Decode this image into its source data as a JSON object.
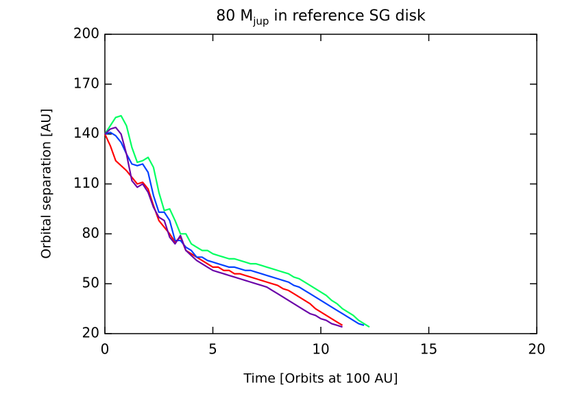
{
  "chart_data": {
    "type": "line",
    "title": {
      "main": "80 M",
      "sub": "jup",
      "rest": " in reference SG disk"
    },
    "x_label": "Time [Orbits at 100 AU]",
    "y_label": "Orbital separation [AU]",
    "xlim": [
      0,
      20
    ],
    "xticks": [
      0,
      5,
      10,
      15,
      20
    ],
    "ylim": [
      20,
      200
    ],
    "yticks": [
      20,
      50,
      80,
      110,
      140,
      170,
      200
    ],
    "grid": false,
    "x": [
      0,
      0.25,
      0.5,
      0.75,
      1,
      1.25,
      1.5,
      1.75,
      2,
      2.25,
      2.5,
      2.75,
      3,
      3.25,
      3.5,
      3.75,
      4,
      4.25,
      4.5,
      4.75,
      5,
      5.25,
      5.5,
      5.75,
      6,
      6.25,
      6.5,
      6.75,
      7,
      7.25,
      7.5,
      7.75,
      8,
      8.25,
      8.5,
      8.75,
      9,
      9.25,
      9.5,
      9.75,
      10,
      10.25,
      10.5,
      10.75,
      11,
      11.25,
      11.5,
      11.75,
      12,
      12.25
    ],
    "series": [
      {
        "color": "#ff0000",
        "values": [
          140,
          133,
          124,
          121,
          118,
          114,
          110,
          111,
          107,
          97,
          88,
          84,
          80,
          75,
          78,
          70,
          68,
          66,
          64,
          62,
          60,
          60,
          58,
          58,
          56,
          56,
          55,
          54,
          53,
          52,
          51,
          50,
          49,
          47,
          46,
          44,
          42,
          40,
          38,
          35,
          33,
          31,
          29,
          27,
          25,
          null,
          null,
          null,
          null,
          null
        ]
      },
      {
        "color": "#0040ff",
        "values": [
          140,
          141,
          139,
          135,
          128,
          122,
          121,
          122,
          117,
          103,
          93,
          93,
          88,
          76,
          76,
          72,
          70,
          66,
          66,
          64,
          63,
          62,
          61,
          60,
          60,
          59,
          58,
          58,
          57,
          56,
          55,
          54,
          53,
          52,
          51,
          49,
          48,
          46,
          44,
          42,
          40,
          38,
          36,
          34,
          32,
          30,
          28,
          26,
          25,
          null
        ]
      },
      {
        "color": "#00ff60",
        "values": [
          140,
          145,
          150,
          151,
          145,
          132,
          123,
          124,
          126,
          120,
          105,
          94,
          95,
          88,
          80,
          80,
          74,
          72,
          70,
          70,
          68,
          67,
          66,
          65,
          65,
          64,
          63,
          62,
          62,
          61,
          60,
          59,
          58,
          57,
          56,
          54,
          53,
          51,
          49,
          47,
          45,
          43,
          40,
          38,
          35,
          33,
          31,
          28,
          26,
          24
        ]
      },
      {
        "color": "#6a00a8",
        "values": [
          140,
          143,
          144,
          140,
          128,
          112,
          108,
          110,
          105,
          96,
          90,
          88,
          78,
          74,
          79,
          70,
          67,
          64,
          62,
          60,
          58,
          57,
          56,
          55,
          54,
          53,
          52,
          51,
          50,
          49,
          48,
          46,
          44,
          42,
          40,
          38,
          36,
          34,
          32,
          31,
          29,
          28,
          26,
          25,
          24,
          null,
          null,
          null,
          null,
          null
        ]
      }
    ]
  }
}
